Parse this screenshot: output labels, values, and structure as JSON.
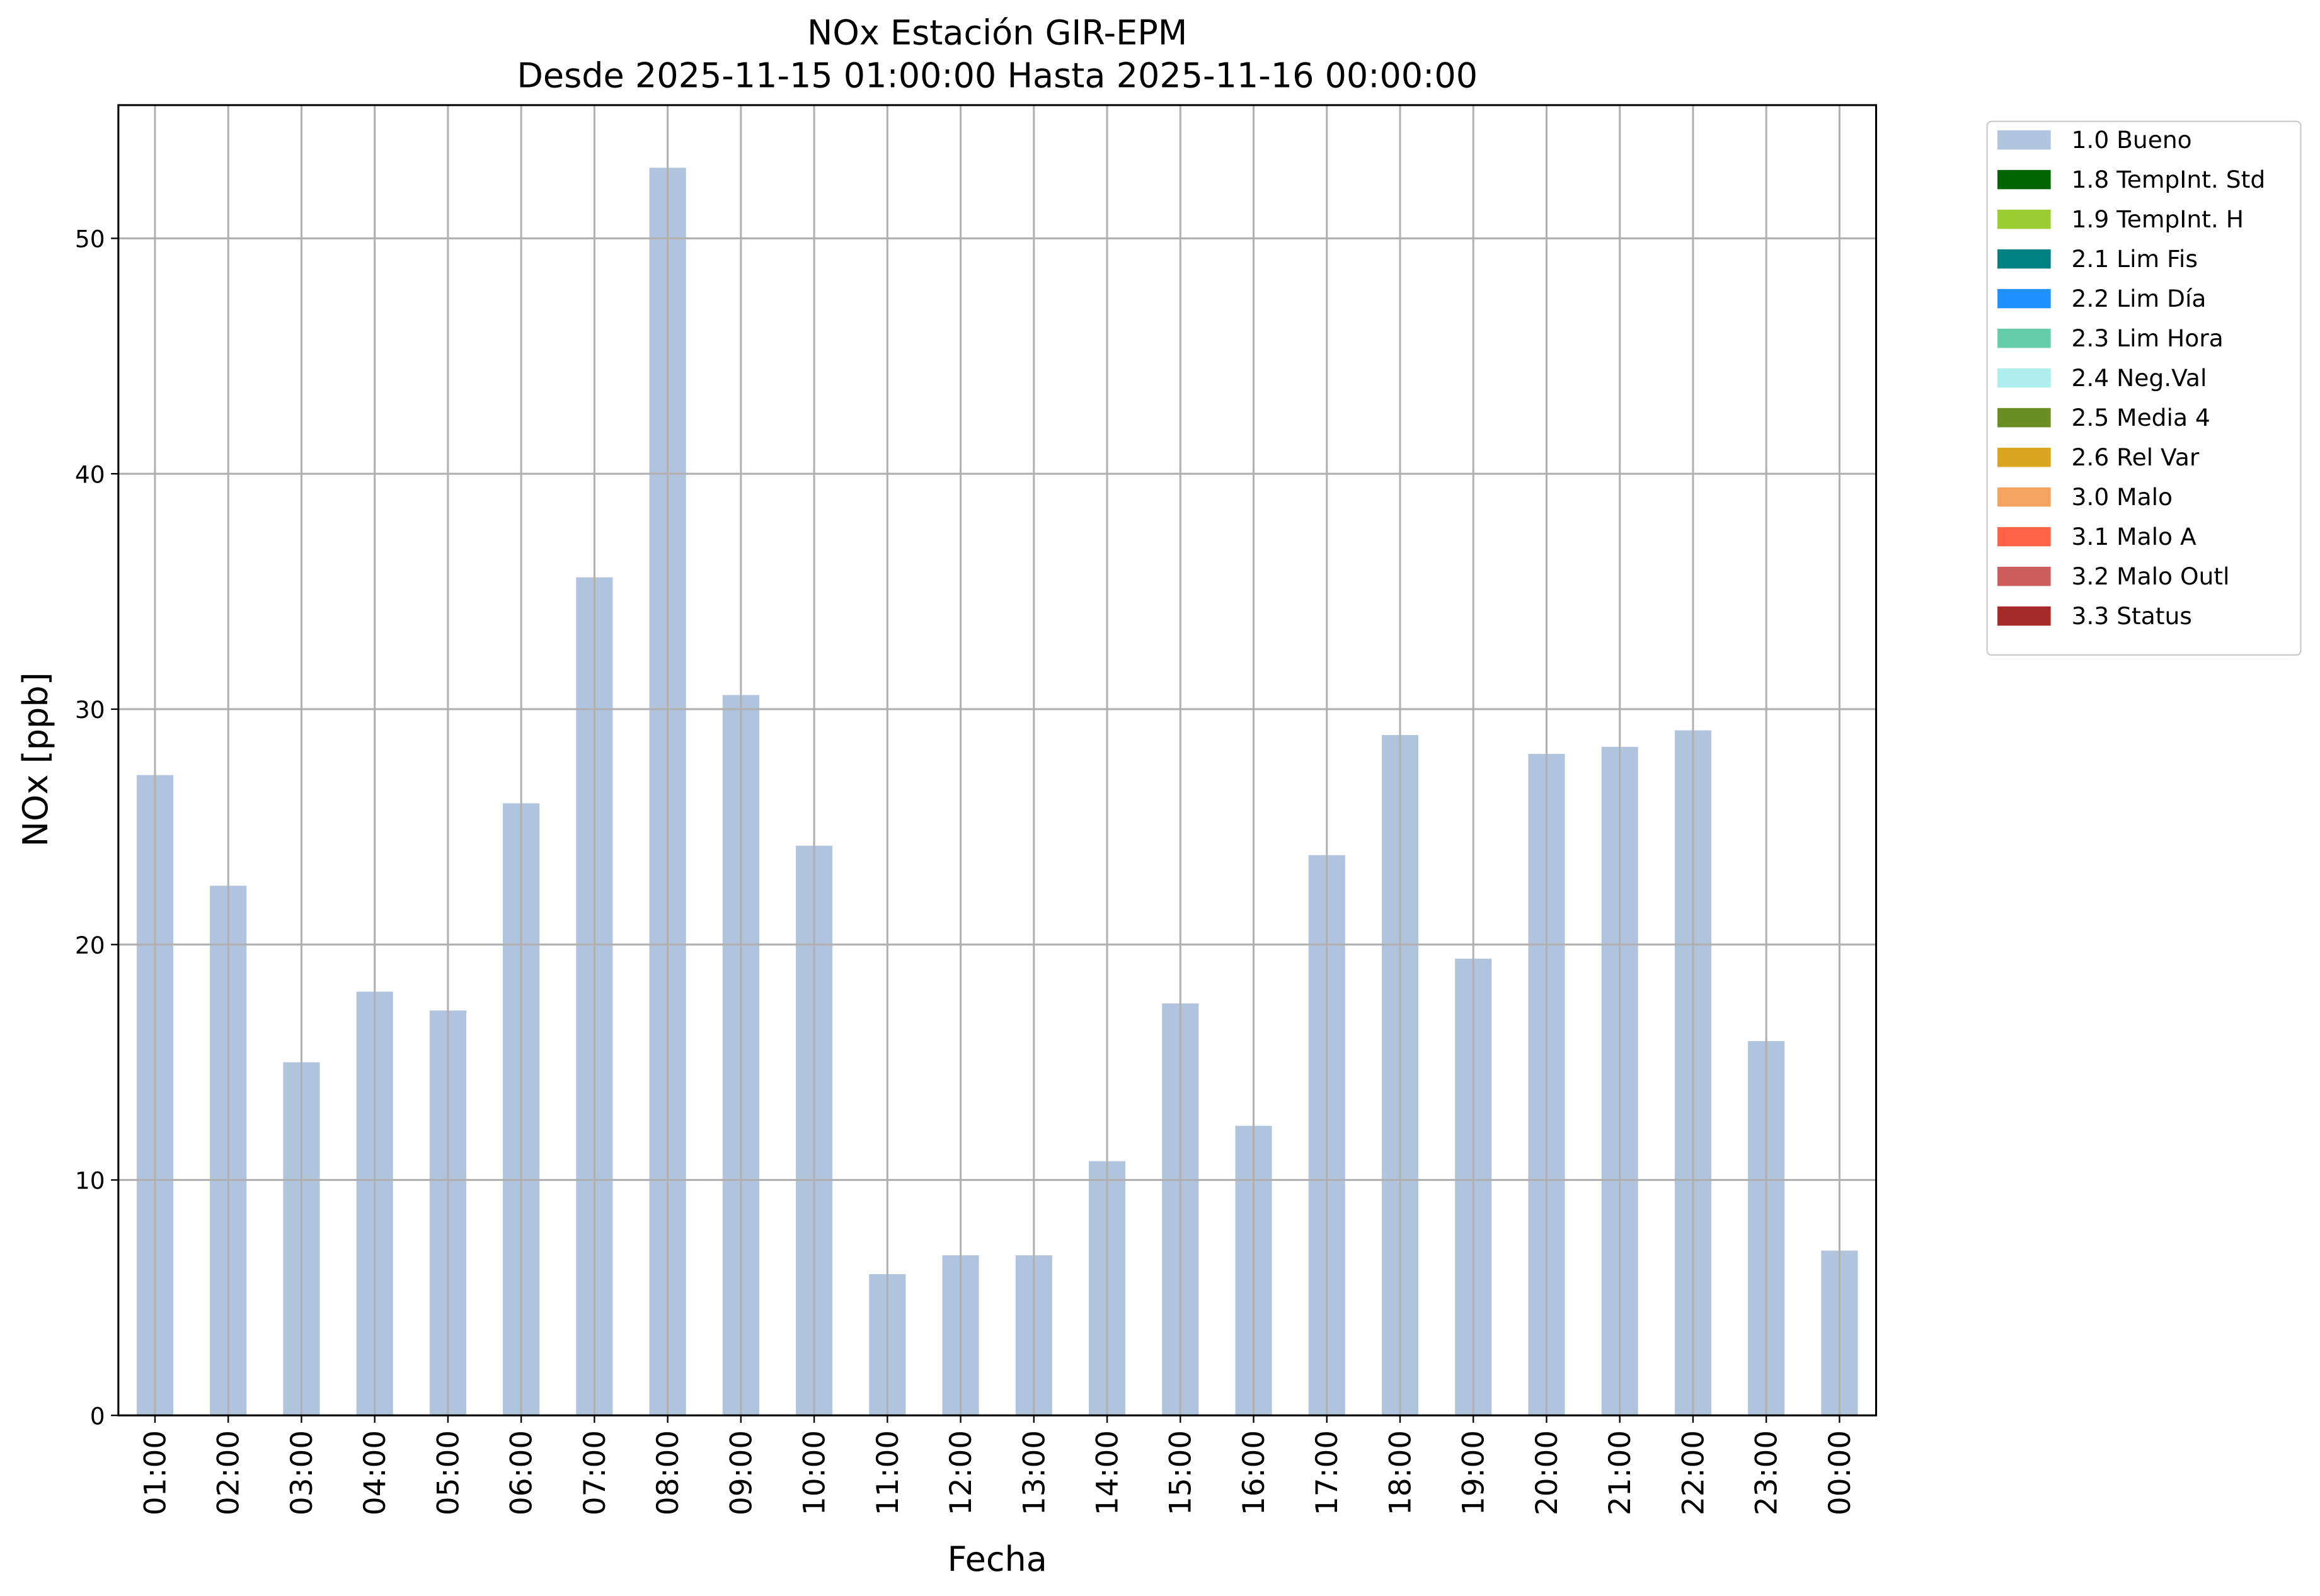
{
  "chart_data": {
    "type": "bar",
    "title": "NOx Estación GIR-EPM",
    "subtitle": "Desde 2025-11-15 01:00:00 Hasta 2025-11-16 00:00:00",
    "x_label": "Fecha",
    "y_label": "NOx [ppb]",
    "categories": [
      "01:00",
      "02:00",
      "03:00",
      "04:00",
      "05:00",
      "06:00",
      "07:00",
      "08:00",
      "09:00",
      "10:00",
      "11:00",
      "12:00",
      "13:00",
      "14:00",
      "15:00",
      "16:00",
      "17:00",
      "18:00",
      "19:00",
      "20:00",
      "21:00",
      "22:00",
      "23:00",
      "00:00"
    ],
    "series": [
      {
        "name": "1.0 Bueno",
        "color": "#b0c4de",
        "values": [
          27.2,
          22.5,
          15.0,
          18.0,
          17.2,
          26.0,
          35.6,
          53.0,
          30.6,
          24.2,
          6.0,
          6.8,
          6.8,
          10.8,
          17.5,
          12.3,
          23.8,
          28.9,
          19.4,
          28.1,
          28.4,
          29.1,
          15.9,
          7.0
        ]
      },
      {
        "name": "1.8 TempInt. Std",
        "color": "#006400"
      },
      {
        "name": "1.9 TempInt. H",
        "color": "#9acd32"
      },
      {
        "name": "2.1 Lim Fis",
        "color": "#008080"
      },
      {
        "name": "2.2 Lim Día",
        "color": "#1e90ff"
      },
      {
        "name": "2.3 Lim Hora",
        "color": "#66cdaa"
      },
      {
        "name": "2.4 Neg.Val",
        "color": "#afeeee"
      },
      {
        "name": "2.5 Media 4",
        "color": "#6b8e23"
      },
      {
        "name": "2.6 Rel Var",
        "color": "#daa520"
      },
      {
        "name": "3.0 Malo",
        "color": "#f4a460"
      },
      {
        "name": "3.1 Malo A",
        "color": "#ff6347"
      },
      {
        "name": "3.2 Malo Outl",
        "color": "#cd5c5c"
      },
      {
        "name": "3.3 Status",
        "color": "#a52a2a"
      }
    ],
    "ylim": [
      0,
      55.66
    ],
    "yticks": [
      0,
      10,
      20,
      30,
      40,
      50
    ],
    "grid": true,
    "legend": "outside-upper-right"
  }
}
